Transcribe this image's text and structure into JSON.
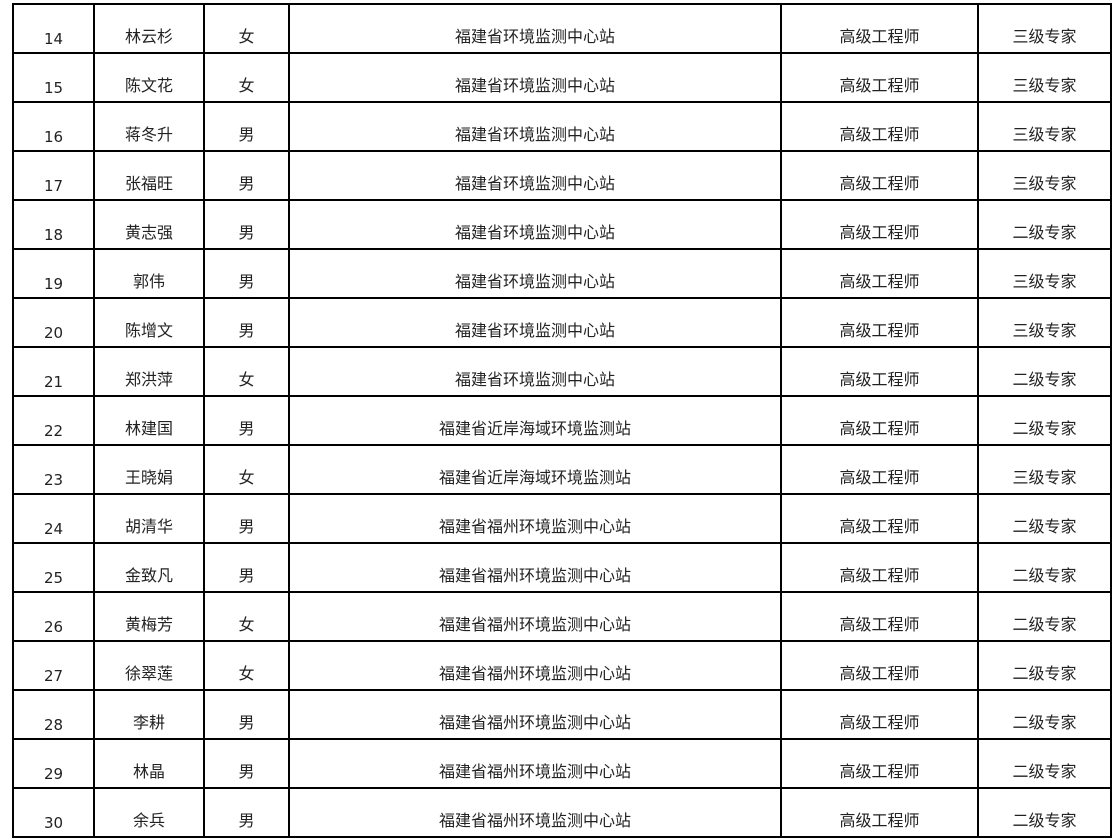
{
  "table": {
    "rows": [
      {
        "no": "14",
        "name": "林云杉",
        "gender": "女",
        "unit": "福建省环境监测中心站",
        "title": "高级工程师",
        "level": "三级专家"
      },
      {
        "no": "15",
        "name": "陈文花",
        "gender": "女",
        "unit": "福建省环境监测中心站",
        "title": "高级工程师",
        "level": "三级专家"
      },
      {
        "no": "16",
        "name": "蒋冬升",
        "gender": "男",
        "unit": "福建省环境监测中心站",
        "title": "高级工程师",
        "level": "三级专家"
      },
      {
        "no": "17",
        "name": "张福旺",
        "gender": "男",
        "unit": "福建省环境监测中心站",
        "title": "高级工程师",
        "level": "三级专家"
      },
      {
        "no": "18",
        "name": "黄志强",
        "gender": "男",
        "unit": "福建省环境监测中心站",
        "title": "高级工程师",
        "level": "二级专家"
      },
      {
        "no": "19",
        "name": "郭伟",
        "gender": "男",
        "unit": "福建省环境监测中心站",
        "title": "高级工程师",
        "level": "三级专家"
      },
      {
        "no": "20",
        "name": "陈增文",
        "gender": "男",
        "unit": "福建省环境监测中心站",
        "title": "高级工程师",
        "level": "三级专家"
      },
      {
        "no": "21",
        "name": "郑洪萍",
        "gender": "女",
        "unit": "福建省环境监测中心站",
        "title": "高级工程师",
        "level": "二级专家"
      },
      {
        "no": "22",
        "name": "林建国",
        "gender": "男",
        "unit": "福建省近岸海域环境监测站",
        "title": "高级工程师",
        "level": "二级专家"
      },
      {
        "no": "23",
        "name": "王晓娟",
        "gender": "女",
        "unit": "福建省近岸海域环境监测站",
        "title": "高级工程师",
        "level": "三级专家"
      },
      {
        "no": "24",
        "name": "胡清华",
        "gender": "男",
        "unit": "福建省福州环境监测中心站",
        "title": "高级工程师",
        "level": "二级专家"
      },
      {
        "no": "25",
        "name": "金致凡",
        "gender": "男",
        "unit": "福建省福州环境监测中心站",
        "title": "高级工程师",
        "level": "二级专家"
      },
      {
        "no": "26",
        "name": "黄梅芳",
        "gender": "女",
        "unit": "福建省福州环境监测中心站",
        "title": "高级工程师",
        "level": "二级专家"
      },
      {
        "no": "27",
        "name": "徐翠莲",
        "gender": "女",
        "unit": "福建省福州环境监测中心站",
        "title": "高级工程师",
        "level": "二级专家"
      },
      {
        "no": "28",
        "name": "李耕",
        "gender": "男",
        "unit": "福建省福州环境监测中心站",
        "title": "高级工程师",
        "level": "二级专家"
      },
      {
        "no": "29",
        "name": "林晶",
        "gender": "男",
        "unit": "福建省福州环境监测中心站",
        "title": "高级工程师",
        "level": "二级专家"
      },
      {
        "no": "30",
        "name": "余兵",
        "gender": "男",
        "unit": "福建省福州环境监测中心站",
        "title": "高级工程师",
        "level": "二级专家"
      }
    ]
  }
}
